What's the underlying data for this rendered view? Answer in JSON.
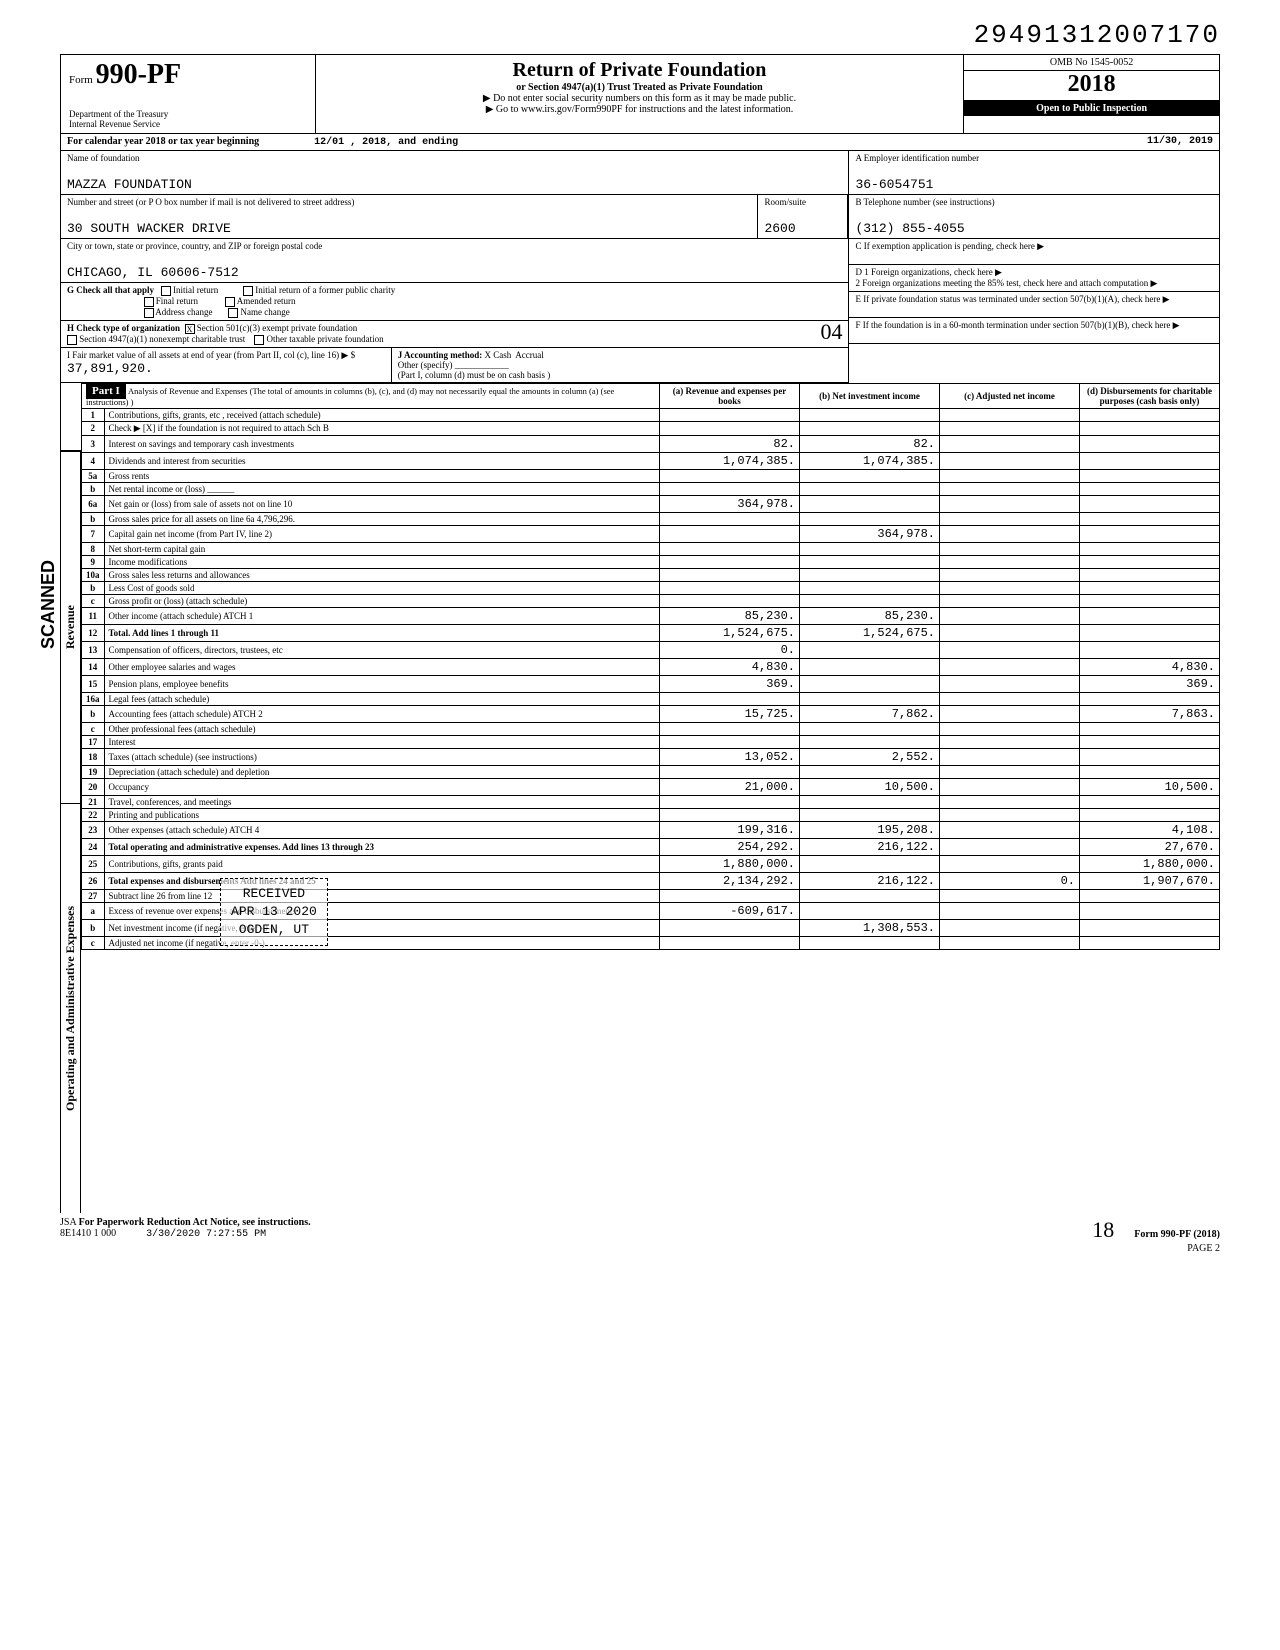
{
  "top_number": "29491312007170",
  "form": {
    "prefix": "Form",
    "number": "990-PF",
    "dept": "Department of the Treasury\nInternal Revenue Service"
  },
  "title": {
    "main": "Return of Private Foundation",
    "sub": "or Section 4947(a)(1) Trust Treated as Private Foundation",
    "line1": "▶ Do not enter social security numbers on this form as it may be made public.",
    "line2": "▶ Go to www.irs.gov/Form990PF for instructions and the latest information."
  },
  "omb": "OMB No 1545-0052",
  "year": "2018",
  "inspect": "Open to Public Inspection",
  "calendar": {
    "label": "For calendar year 2018 or tax year beginning",
    "begin": "12/01 , 2018, and ending",
    "end": "11/30, 2019"
  },
  "foundation": {
    "name_label": "Name of foundation",
    "name": "MAZZA FOUNDATION",
    "addr_label": "Number and street (or P O box number if mail is not delivered to street address)",
    "addr": "30 SOUTH WACKER DRIVE",
    "room_label": "Room/suite",
    "room": "2600",
    "city_label": "City or town, state or province, country, and ZIP or foreign postal code",
    "city": "CHICAGO, IL 60606-7512"
  },
  "boxA": {
    "label": "A  Employer identification number",
    "val": "36-6054751"
  },
  "boxB": {
    "label": "B  Telephone number (see instructions)",
    "val": "(312) 855-4055"
  },
  "boxC": {
    "label": "C  If exemption application is pending, check here"
  },
  "boxD": {
    "l1": "D 1 Foreign organizations, check here",
    "l2": "2 Foreign organizations meeting the 85% test, check here and attach computation"
  },
  "boxE": {
    "label": "E  If private foundation status was terminated under section 507(b)(1)(A), check here"
  },
  "boxF": {
    "label": "F  If the foundation is in a 60-month termination under section 507(b)(1)(B), check here"
  },
  "sectionG": {
    "label": "G Check all that apply",
    "opts": [
      "Initial return",
      "Final return",
      "Address change",
      "Initial return of a former public charity",
      "Amended return",
      "Name change"
    ]
  },
  "sectionH": {
    "label": "H Check type of organization",
    "opt1": "Section 501(c)(3) exempt private foundation",
    "opt2": "Section 4947(a)(1) nonexempt charitable trust",
    "opt3": "Other taxable private foundation"
  },
  "sectionI": {
    "label": "I Fair market value of all assets at end of year (from Part II, col (c), line 16) ▶ $",
    "val": "37,891,920."
  },
  "sectionJ": {
    "label": "J Accounting method:",
    "cash": "Cash",
    "accrual": "Accrual",
    "other": "Other (specify)",
    "note": "(Part I, column (d) must be on cash basis )"
  },
  "part1": {
    "tab": "Part I",
    "desc": "Analysis of Revenue and Expenses (The total of amounts in columns (b), (c), and (d) may not necessarily equal the amounts in column (a) (see instructions) )",
    "colA": "(a) Revenue and expenses per books",
    "colB": "(b) Net investment income",
    "colC": "(c) Adjusted net income",
    "colD": "(d) Disbursements for charitable purposes (cash basis only)"
  },
  "sidebars": {
    "scanned": "SCANNED",
    "revenue": "Revenue",
    "expenses": "Operating and Administrative Expenses"
  },
  "rows": [
    {
      "n": "1",
      "lbl": "Contributions, gifts, grants, etc , received (attach schedule)",
      "a": "",
      "b": "",
      "c": "",
      "d": ""
    },
    {
      "n": "2",
      "lbl": "Check ▶ [X] if the foundation is not required to attach Sch B",
      "a": "",
      "b": "",
      "c": "",
      "d": ""
    },
    {
      "n": "3",
      "lbl": "Interest on savings and temporary cash investments",
      "a": "82.",
      "b": "82.",
      "c": "",
      "d": ""
    },
    {
      "n": "4",
      "lbl": "Dividends and interest from securities",
      "a": "1,074,385.",
      "b": "1,074,385.",
      "c": "",
      "d": ""
    },
    {
      "n": "5a",
      "lbl": "Gross rents",
      "a": "",
      "b": "",
      "c": "",
      "d": ""
    },
    {
      "n": "b",
      "lbl": "Net rental income or (loss) ______",
      "a": "",
      "b": "",
      "c": "",
      "d": ""
    },
    {
      "n": "6a",
      "lbl": "Net gain or (loss) from sale of assets not on line 10",
      "a": "364,978.",
      "b": "",
      "c": "",
      "d": ""
    },
    {
      "n": "b",
      "lbl": "Gross sales price for all assets on line 6a      4,796,296.",
      "a": "",
      "b": "",
      "c": "",
      "d": ""
    },
    {
      "n": "7",
      "lbl": "Capital gain net income (from Part IV, line 2)",
      "a": "",
      "b": "364,978.",
      "c": "",
      "d": ""
    },
    {
      "n": "8",
      "lbl": "Net short-term capital gain",
      "a": "",
      "b": "",
      "c": "",
      "d": ""
    },
    {
      "n": "9",
      "lbl": "Income modifications",
      "a": "",
      "b": "",
      "c": "",
      "d": ""
    },
    {
      "n": "10a",
      "lbl": "Gross sales less returns and allowances",
      "a": "",
      "b": "",
      "c": "",
      "d": ""
    },
    {
      "n": "b",
      "lbl": "Less Cost of goods sold",
      "a": "",
      "b": "",
      "c": "",
      "d": ""
    },
    {
      "n": "c",
      "lbl": "Gross profit or (loss) (attach schedule)",
      "a": "",
      "b": "",
      "c": "",
      "d": ""
    },
    {
      "n": "11",
      "lbl": "Other income (attach schedule) ATCH 1",
      "a": "85,230.",
      "b": "85,230.",
      "c": "",
      "d": ""
    },
    {
      "n": "12",
      "lbl": "Total. Add lines 1 through 11",
      "a": "1,524,675.",
      "b": "1,524,675.",
      "c": "",
      "d": ""
    },
    {
      "n": "13",
      "lbl": "Compensation of officers, directors, trustees, etc",
      "a": "0.",
      "b": "",
      "c": "",
      "d": ""
    },
    {
      "n": "14",
      "lbl": "Other employee salaries and wages",
      "a": "4,830.",
      "b": "",
      "c": "",
      "d": "4,830."
    },
    {
      "n": "15",
      "lbl": "Pension plans, employee benefits",
      "a": "369.",
      "b": "",
      "c": "",
      "d": "369."
    },
    {
      "n": "16a",
      "lbl": "Legal fees (attach schedule)",
      "a": "",
      "b": "",
      "c": "",
      "d": ""
    },
    {
      "n": "b",
      "lbl": "Accounting fees (attach schedule) ATCH 2",
      "a": "15,725.",
      "b": "7,862.",
      "c": "",
      "d": "7,863."
    },
    {
      "n": "c",
      "lbl": "Other professional fees (attach schedule)",
      "a": "",
      "b": "",
      "c": "",
      "d": ""
    },
    {
      "n": "17",
      "lbl": "Interest",
      "a": "",
      "b": "",
      "c": "",
      "d": ""
    },
    {
      "n": "18",
      "lbl": "Taxes (attach schedule) (see instructions)",
      "a": "13,052.",
      "b": "2,552.",
      "c": "",
      "d": ""
    },
    {
      "n": "19",
      "lbl": "Depreciation (attach schedule) and depletion",
      "a": "",
      "b": "",
      "c": "",
      "d": ""
    },
    {
      "n": "20",
      "lbl": "Occupancy",
      "a": "21,000.",
      "b": "10,500.",
      "c": "",
      "d": "10,500."
    },
    {
      "n": "21",
      "lbl": "Travel, conferences, and meetings",
      "a": "",
      "b": "",
      "c": "",
      "d": ""
    },
    {
      "n": "22",
      "lbl": "Printing and publications",
      "a": "",
      "b": "",
      "c": "",
      "d": ""
    },
    {
      "n": "23",
      "lbl": "Other expenses (attach schedule) ATCH 4",
      "a": "199,316.",
      "b": "195,208.",
      "c": "",
      "d": "4,108."
    },
    {
      "n": "24",
      "lbl": "Total operating and administrative expenses. Add lines 13 through 23",
      "a": "254,292.",
      "b": "216,122.",
      "c": "",
      "d": "27,670."
    },
    {
      "n": "25",
      "lbl": "Contributions, gifts, grants paid",
      "a": "1,880,000.",
      "b": "",
      "c": "",
      "d": "1,880,000."
    },
    {
      "n": "26",
      "lbl": "Total expenses and disbursements Add lines 24 and 25",
      "a": "2,134,292.",
      "b": "216,122.",
      "c": "0.",
      "d": "1,907,670."
    },
    {
      "n": "27",
      "lbl": "Subtract line 26 from line 12",
      "a": "",
      "b": "",
      "c": "",
      "d": ""
    },
    {
      "n": "a",
      "lbl": "Excess of revenue over expenses and disbursements",
      "a": "-609,617.",
      "b": "",
      "c": "",
      "d": ""
    },
    {
      "n": "b",
      "lbl": "Net investment income (if negative, enter -0-)",
      "a": "",
      "b": "1,308,553.",
      "c": "",
      "d": ""
    },
    {
      "n": "c",
      "lbl": "Adjusted net income (if negative, enter -0-)",
      "a": "",
      "b": "",
      "c": "",
      "d": ""
    }
  ],
  "stamp": {
    "l1": "RECEIVED",
    "l2": "APR 13 2020",
    "l3": "OGDEN, UT"
  },
  "footer": {
    "jsa": "JSA",
    "paperwork": "For Paperwork Reduction Act Notice, see instructions.",
    "code": "8E1410 1 000",
    "date": "3/30/2020   7:27:55 PM",
    "hand18": "18",
    "formref": "Form 990-PF (2018)",
    "page": "PAGE 2"
  },
  "hand04": "04"
}
